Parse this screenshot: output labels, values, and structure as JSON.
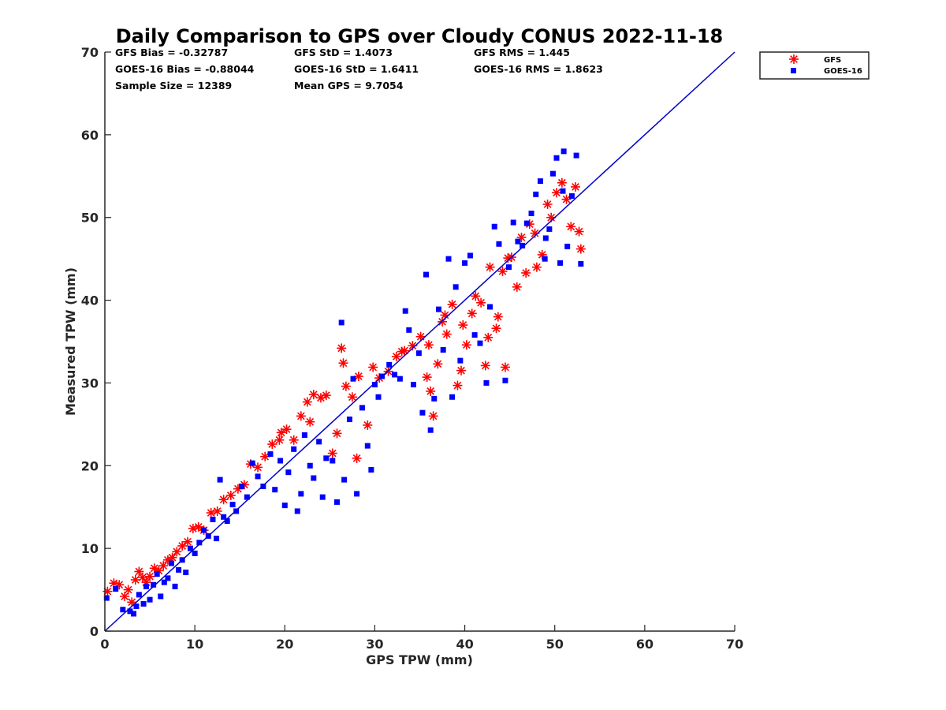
{
  "chart_data": {
    "type": "scatter",
    "title": "Daily Comparison to GPS over Cloudy CONUS 2022-11-18",
    "xlabel": "GPS TPW (mm)",
    "ylabel": "Measured TPW (mm)",
    "xlim": [
      0,
      70
    ],
    "ylim": [
      0,
      70
    ],
    "xticks": [
      "0",
      "10",
      "20",
      "30",
      "40",
      "50",
      "60",
      "70"
    ],
    "yticks": [
      "0",
      "10",
      "20",
      "30",
      "40",
      "50",
      "60",
      "70"
    ],
    "grid": false,
    "legend_position": "outside top-right",
    "stats": [
      "GFS Bias = -0.32787",
      "GFS StD = 1.4073",
      "GFS RMS = 1.445",
      "GOES-16 Bias = -0.88044",
      "GOES-16 StD = 1.6411",
      "GOES-16 RMS = 1.8623",
      "Sample Size = 12389",
      "Mean GPS = 9.7054"
    ],
    "series": [
      {
        "name": "GFS",
        "marker": "asterisk",
        "color": "#ff0000",
        "points": [
          [
            0.3,
            4.8
          ],
          [
            1.0,
            5.8
          ],
          [
            1.6,
            5.6
          ],
          [
            2.2,
            4.2
          ],
          [
            2.6,
            5.0
          ],
          [
            3.0,
            3.5
          ],
          [
            3.4,
            6.2
          ],
          [
            3.8,
            7.2
          ],
          [
            4.2,
            6.5
          ],
          [
            4.6,
            5.9
          ],
          [
            5.0,
            6.6
          ],
          [
            5.5,
            7.6
          ],
          [
            6.0,
            7.3
          ],
          [
            6.5,
            7.9
          ],
          [
            7.0,
            8.6
          ],
          [
            7.5,
            8.9
          ],
          [
            8.0,
            9.6
          ],
          [
            8.6,
            10.3
          ],
          [
            9.2,
            10.8
          ],
          [
            9.8,
            12.4
          ],
          [
            10.4,
            12.6
          ],
          [
            11.0,
            12.2
          ],
          [
            11.8,
            14.3
          ],
          [
            12.5,
            14.5
          ],
          [
            13.2,
            15.9
          ],
          [
            14.0,
            16.4
          ],
          [
            14.8,
            17.2
          ],
          [
            15.5,
            17.7
          ],
          [
            16.2,
            20.2
          ],
          [
            17.0,
            19.8
          ],
          [
            17.8,
            21.1
          ],
          [
            18.6,
            22.6
          ],
          [
            19.4,
            23.1
          ],
          [
            20.2,
            24.4
          ],
          [
            21.0,
            23.1
          ],
          [
            21.8,
            26.0
          ],
          [
            22.5,
            27.7
          ],
          [
            23.2,
            28.6
          ],
          [
            24.0,
            28.2
          ],
          [
            24.6,
            28.5
          ],
          [
            25.3,
            21.5
          ],
          [
            25.8,
            23.9
          ],
          [
            26.3,
            34.2
          ],
          [
            26.5,
            32.4
          ],
          [
            26.8,
            29.6
          ],
          [
            27.5,
            28.3
          ],
          [
            28.2,
            30.8
          ],
          [
            28.0,
            20.9
          ],
          [
            29.2,
            24.9
          ],
          [
            29.8,
            31.9
          ],
          [
            30.5,
            30.6
          ],
          [
            31.5,
            31.4
          ],
          [
            32.4,
            33.2
          ],
          [
            33.3,
            33.9
          ],
          [
            34.2,
            34.5
          ],
          [
            35.1,
            35.6
          ],
          [
            35.8,
            30.7
          ],
          [
            36.2,
            29.0
          ],
          [
            36.5,
            26.0
          ],
          [
            37.0,
            32.3
          ],
          [
            37.5,
            37.4
          ],
          [
            38.0,
            35.9
          ],
          [
            38.6,
            39.5
          ],
          [
            39.2,
            29.7
          ],
          [
            39.6,
            31.5
          ],
          [
            40.2,
            34.6
          ],
          [
            40.8,
            38.4
          ],
          [
            41.2,
            40.5
          ],
          [
            41.8,
            39.7
          ],
          [
            42.3,
            32.1
          ],
          [
            42.6,
            35.5
          ],
          [
            42.8,
            44.0
          ],
          [
            43.5,
            36.6
          ],
          [
            43.7,
            38.0
          ],
          [
            44.2,
            43.5
          ],
          [
            44.5,
            31.9
          ],
          [
            45.2,
            45.2
          ],
          [
            45.8,
            41.6
          ],
          [
            46.3,
            47.6
          ],
          [
            47.2,
            49.2
          ],
          [
            47.8,
            48.1
          ],
          [
            48.6,
            45.5
          ],
          [
            49.2,
            51.6
          ],
          [
            49.6,
            50.0
          ],
          [
            50.2,
            53.0
          ],
          [
            50.8,
            54.2
          ],
          [
            51.3,
            52.2
          ],
          [
            51.8,
            48.9
          ],
          [
            52.3,
            53.7
          ],
          [
            52.9,
            46.2
          ],
          [
            52.7,
            48.3
          ],
          [
            48.0,
            44.0
          ],
          [
            46.8,
            43.3
          ],
          [
            44.8,
            45.1
          ],
          [
            39.8,
            37.0
          ],
          [
            37.8,
            38.2
          ],
          [
            36.0,
            34.6
          ],
          [
            33.0,
            33.8
          ],
          [
            22.8,
            25.3
          ],
          [
            19.6,
            24.0
          ]
        ]
      },
      {
        "name": "GOES-16",
        "marker": "square",
        "color": "#0000ff",
        "points": [
          [
            0.2,
            4.0
          ],
          [
            1.2,
            5.1
          ],
          [
            2.0,
            2.6
          ],
          [
            2.8,
            2.4
          ],
          [
            3.2,
            2.1
          ],
          [
            3.5,
            3.0
          ],
          [
            3.8,
            4.4
          ],
          [
            4.3,
            3.3
          ],
          [
            4.6,
            5.4
          ],
          [
            5.0,
            3.8
          ],
          [
            5.4,
            5.6
          ],
          [
            5.8,
            6.9
          ],
          [
            6.2,
            4.2
          ],
          [
            6.6,
            5.9
          ],
          [
            7.0,
            6.4
          ],
          [
            7.4,
            8.2
          ],
          [
            7.8,
            5.4
          ],
          [
            8.2,
            7.4
          ],
          [
            8.6,
            8.6
          ],
          [
            9.0,
            7.1
          ],
          [
            9.5,
            10.0
          ],
          [
            10.0,
            9.4
          ],
          [
            10.5,
            10.7
          ],
          [
            11.0,
            12.2
          ],
          [
            11.5,
            11.5
          ],
          [
            12.0,
            13.5
          ],
          [
            12.4,
            11.2
          ],
          [
            12.8,
            18.3
          ],
          [
            13.2,
            13.8
          ],
          [
            13.6,
            13.3
          ],
          [
            14.2,
            15.3
          ],
          [
            14.6,
            14.5
          ],
          [
            15.2,
            17.5
          ],
          [
            15.8,
            16.2
          ],
          [
            16.4,
            20.3
          ],
          [
            17.0,
            18.7
          ],
          [
            17.6,
            17.5
          ],
          [
            18.4,
            21.4
          ],
          [
            18.9,
            17.1
          ],
          [
            19.5,
            20.6
          ],
          [
            20.0,
            15.2
          ],
          [
            20.4,
            19.2
          ],
          [
            21.0,
            22.0
          ],
          [
            21.4,
            14.5
          ],
          [
            21.8,
            16.6
          ],
          [
            22.2,
            23.7
          ],
          [
            22.8,
            20.0
          ],
          [
            23.2,
            18.5
          ],
          [
            23.8,
            22.9
          ],
          [
            24.2,
            16.2
          ],
          [
            24.6,
            20.9
          ],
          [
            25.3,
            20.6
          ],
          [
            25.8,
            15.6
          ],
          [
            26.3,
            37.3
          ],
          [
            26.6,
            18.3
          ],
          [
            27.2,
            25.6
          ],
          [
            27.6,
            30.5
          ],
          [
            28.0,
            16.6
          ],
          [
            28.6,
            27.0
          ],
          [
            29.2,
            22.4
          ],
          [
            29.6,
            19.5
          ],
          [
            30.0,
            29.8
          ],
          [
            30.4,
            28.3
          ],
          [
            30.8,
            30.8
          ],
          [
            31.6,
            32.2
          ],
          [
            32.2,
            31.0
          ],
          [
            32.8,
            30.5
          ],
          [
            33.4,
            38.7
          ],
          [
            33.8,
            36.4
          ],
          [
            34.3,
            29.8
          ],
          [
            34.9,
            33.6
          ],
          [
            35.3,
            26.4
          ],
          [
            35.7,
            43.1
          ],
          [
            36.2,
            24.3
          ],
          [
            36.6,
            28.1
          ],
          [
            37.1,
            38.9
          ],
          [
            37.6,
            34.0
          ],
          [
            38.2,
            45.0
          ],
          [
            38.6,
            28.3
          ],
          [
            39.0,
            41.6
          ],
          [
            39.5,
            32.7
          ],
          [
            40.0,
            44.5
          ],
          [
            40.6,
            45.4
          ],
          [
            41.1,
            35.8
          ],
          [
            41.7,
            34.8
          ],
          [
            42.4,
            30.0
          ],
          [
            42.8,
            39.2
          ],
          [
            43.3,
            48.9
          ],
          [
            43.8,
            46.8
          ],
          [
            44.5,
            30.3
          ],
          [
            44.9,
            44.0
          ],
          [
            45.4,
            49.4
          ],
          [
            45.9,
            47.1
          ],
          [
            46.4,
            46.6
          ],
          [
            46.9,
            49.3
          ],
          [
            47.4,
            50.5
          ],
          [
            47.9,
            52.8
          ],
          [
            48.4,
            54.4
          ],
          [
            48.9,
            45.0
          ],
          [
            49.4,
            48.6
          ],
          [
            49.8,
            55.3
          ],
          [
            50.2,
            57.2
          ],
          [
            50.6,
            44.5
          ],
          [
            51.0,
            58.0
          ],
          [
            51.4,
            46.5
          ],
          [
            51.9,
            52.6
          ],
          [
            52.4,
            57.5
          ],
          [
            52.9,
            44.4
          ],
          [
            50.9,
            53.2
          ],
          [
            49.0,
            47.5
          ]
        ]
      }
    ],
    "reference_line": {
      "label": "1:1 line",
      "x": [
        0,
        70
      ],
      "y": [
        0,
        70
      ],
      "color": "#0000cc"
    }
  }
}
